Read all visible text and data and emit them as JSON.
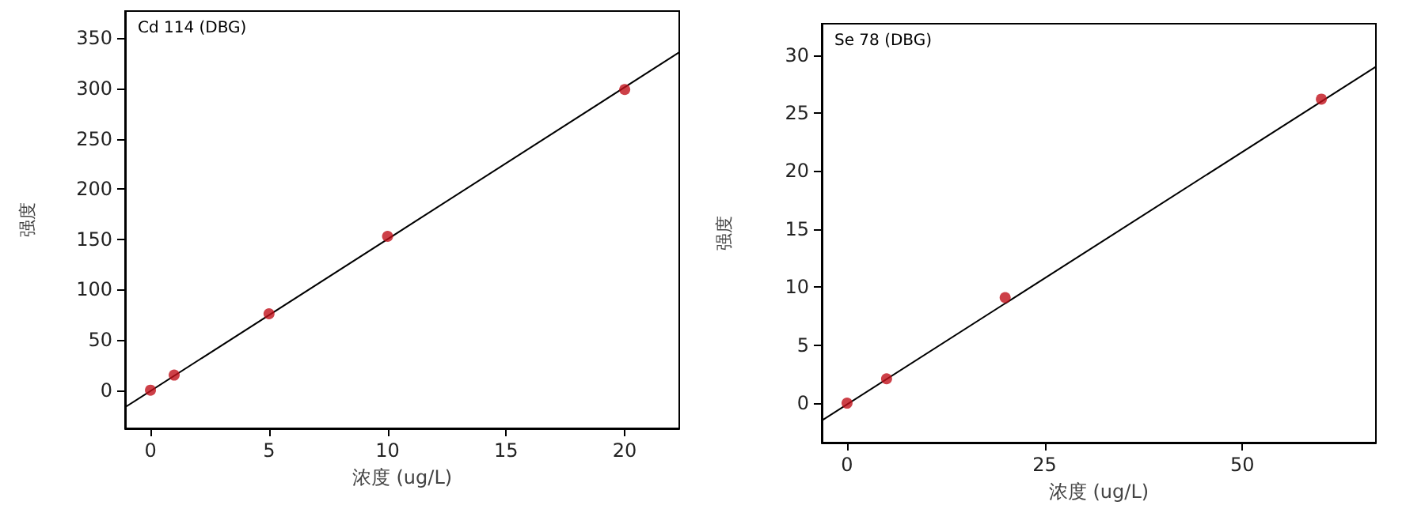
{
  "chart_data": [
    {
      "type": "scatter",
      "annotations": [
        "Cd 114 (DBG)"
      ],
      "xlabel": "浓度 (ug/L)",
      "ylabel": "强度",
      "xlim": [
        -1.07,
        22.3
      ],
      "ylim": [
        -38,
        377
      ],
      "xticks": [
        0,
        5,
        10,
        15,
        20
      ],
      "yticks": [
        0,
        50,
        100,
        150,
        200,
        250,
        300,
        350
      ],
      "grid": false,
      "marker": "circle",
      "series": [
        {
          "color": "#c0101a",
          "x": [
            0,
            1,
            5,
            10,
            20
          ],
          "values": [
            0,
            15,
            76,
            153,
            299
          ]
        },
        {
          "type": "line",
          "color": "#000000",
          "line_style": "solid",
          "marker": "none",
          "x": [
            -1.07,
            22.3
          ],
          "values": [
            -17,
            336
          ]
        }
      ]
    },
    {
      "type": "scatter",
      "annotations": [
        "Se 78 (DBG)"
      ],
      "xlabel": "浓度 (ug/L)",
      "ylabel": "强度",
      "xlim": [
        -3.2,
        66.9
      ],
      "ylim": [
        -3.4,
        32.7
      ],
      "xticks": [
        0,
        25,
        50
      ],
      "yticks": [
        0,
        5,
        10,
        15,
        20,
        25,
        30
      ],
      "grid": false,
      "marker": "circle",
      "series": [
        {
          "color": "#c0101a",
          "x": [
            0,
            5,
            20,
            60
          ],
          "values": [
            0,
            2.1,
            9.1,
            26.2
          ]
        },
        {
          "type": "line",
          "color": "#000000",
          "line_style": "solid",
          "marker": "none",
          "x": [
            -3.2,
            66.9
          ],
          "values": [
            -1.5,
            29.0
          ]
        }
      ]
    }
  ]
}
